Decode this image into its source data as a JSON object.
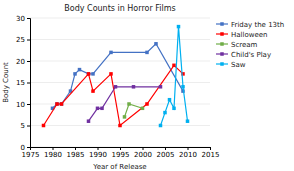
{
  "chart_data": {
    "type": "line",
    "title": "Body Counts in Horror Films",
    "xlabel": "Year of Release",
    "ylabel": "Body Count",
    "xlim": [
      1975,
      2015
    ],
    "ylim": [
      0,
      30
    ],
    "xticks": [
      1975,
      1980,
      1985,
      1990,
      1995,
      2000,
      2005,
      2010,
      2015
    ],
    "yticks": [
      0,
      5,
      10,
      15,
      20,
      25,
      30
    ],
    "grid": true,
    "legend": "upper right",
    "series": [
      {
        "name": "Friday the 13th",
        "color": "#4472C4",
        "marker": "square",
        "x": [
          1980,
          1981,
          1982,
          1984,
          1985,
          1986,
          1988,
          1989,
          1993,
          2001,
          2003,
          2009
        ],
        "values": [
          9,
          10,
          10,
          13,
          17,
          18,
          17,
          17,
          22,
          22,
          24,
          13
        ]
      },
      {
        "name": "Halloween",
        "color": "#FF0000",
        "marker": "square",
        "x": [
          1978,
          1981,
          1982,
          1988,
          1989,
          1993,
          1995,
          2001,
          2007,
          2009
        ],
        "values": [
          5,
          10,
          10,
          17,
          13,
          17,
          5,
          10,
          19,
          17
        ]
      },
      {
        "name": "Scream",
        "color": "#70AD47",
        "marker": "square",
        "x": [
          1996,
          1997,
          2000
        ],
        "values": [
          7,
          10,
          9
        ]
      },
      {
        "name": "Child's Play",
        "color": "#7030A0",
        "marker": "square",
        "x": [
          1988,
          1990,
          1991,
          1994,
          1998,
          2004
        ],
        "values": [
          6,
          9,
          9,
          14,
          14,
          14
        ]
      },
      {
        "name": "Saw",
        "color": "#00B0F0",
        "marker": "square",
        "x": [
          2004,
          2005,
          2006,
          2007,
          2008,
          2009,
          2010
        ],
        "values": [
          5,
          8,
          11,
          9,
          28,
          14,
          6
        ]
      }
    ]
  }
}
